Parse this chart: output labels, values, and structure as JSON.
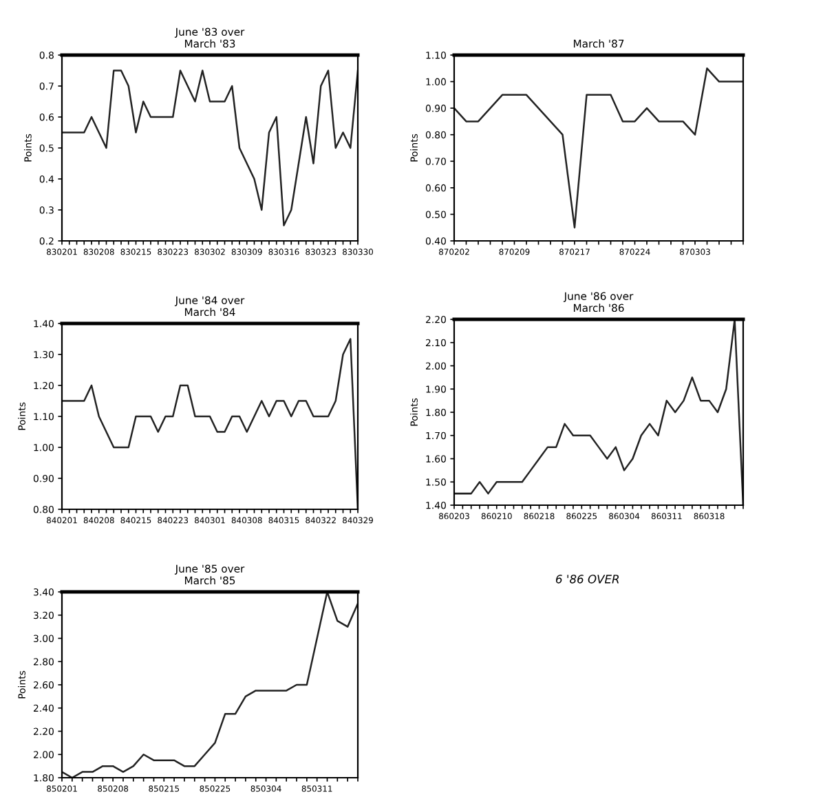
{
  "chart_data": [
    {
      "type": "line",
      "title": "June '83 over\nMarch '83",
      "ylabel": "Points",
      "grid": false,
      "marker": "none",
      "line_style": "solid",
      "categories": [
        "830201",
        null,
        null,
        null,
        null,
        "830208",
        null,
        null,
        null,
        null,
        "830215",
        null,
        null,
        null,
        null,
        "830223",
        null,
        null,
        null,
        null,
        "830302",
        null,
        null,
        null,
        null,
        "830309",
        null,
        null,
        null,
        null,
        "830316",
        null,
        null,
        null,
        null,
        "830323",
        null,
        null,
        null,
        null,
        "830330"
      ],
      "series": [
        {
          "color": "#222222",
          "values": [
            0.55,
            0.55,
            0.55,
            0.55,
            0.6,
            0.55,
            0.5,
            0.75,
            0.75,
            0.7,
            0.55,
            0.65,
            0.6,
            0.6,
            0.6,
            0.6,
            0.75,
            0.7,
            0.65,
            0.75,
            0.65,
            0.65,
            0.65,
            0.7,
            0.5,
            0.45,
            0.4,
            0.3,
            0.55,
            0.6,
            0.25,
            0.3,
            0.45,
            0.6,
            0.45,
            0.7,
            0.75,
            0.5,
            0.55,
            0.5,
            0.75
          ]
        }
      ],
      "ylim": [
        0.2,
        0.8
      ],
      "yticks": [
        0.2,
        0.3,
        0.4,
        0.5,
        0.6,
        0.7,
        0.8
      ]
    },
    {
      "type": "line",
      "title": "March '87",
      "ylabel": "Points",
      "grid": false,
      "marker": "none",
      "line_style": "solid",
      "categories": [
        "870202",
        null,
        null,
        null,
        null,
        "870209",
        null,
        null,
        null,
        null,
        "870217",
        null,
        null,
        null,
        null,
        "870224",
        null,
        null,
        null,
        null,
        "870303",
        null,
        null,
        null,
        null
      ],
      "series": [
        {
          "color": "#222222",
          "values": [
            0.9,
            0.85,
            0.85,
            0.9,
            0.95,
            0.95,
            0.95,
            0.9,
            0.85,
            0.8,
            0.45,
            0.95,
            0.95,
            0.95,
            0.85,
            0.85,
            0.9,
            0.85,
            0.85,
            0.85,
            0.8,
            1.05,
            1.0,
            1.0,
            1.0
          ]
        }
      ],
      "ylim": [
        0.4,
        1.1
      ],
      "yticks": [
        {
          "value": 0.4,
          "label": "0.40"
        },
        {
          "value": 0.5,
          "label": "0.50"
        },
        {
          "value": 0.6,
          "label": "0.60"
        },
        {
          "value": 0.7,
          "label": "0.70"
        },
        {
          "value": 0.8,
          "label": "0.80"
        },
        {
          "value": 0.9,
          "label": "0.90"
        },
        {
          "value": 1.0,
          "label": "1.00"
        },
        {
          "value": 1.1,
          "label": "1.10"
        }
      ]
    },
    {
      "type": "line",
      "title": "June '84 over\nMarch '84",
      "ylabel": "Points",
      "grid": false,
      "marker": "none",
      "line_style": "solid",
      "categories": [
        "840201",
        null,
        null,
        null,
        null,
        "840208",
        null,
        null,
        null,
        null,
        "840215",
        null,
        null,
        null,
        null,
        "840223",
        null,
        null,
        null,
        null,
        "840301",
        null,
        null,
        null,
        null,
        "840308",
        null,
        null,
        null,
        null,
        "840315",
        null,
        null,
        null,
        null,
        "840322",
        null,
        null,
        null,
        null,
        "840329"
      ],
      "series": [
        {
          "color": "#222222",
          "values": [
            1.15,
            1.15,
            1.15,
            1.15,
            1.2,
            1.1,
            1.05,
            1.0,
            1.0,
            1.0,
            1.1,
            1.1,
            1.1,
            1.05,
            1.1,
            1.1,
            1.2,
            1.2,
            1.1,
            1.1,
            1.1,
            1.05,
            1.05,
            1.1,
            1.1,
            1.05,
            1.1,
            1.15,
            1.1,
            1.15,
            1.15,
            1.1,
            1.15,
            1.15,
            1.1,
            1.1,
            1.1,
            1.15,
            1.3,
            1.35,
            0.8
          ]
        }
      ],
      "ylim": [
        0.8,
        1.4
      ],
      "yticks": [
        {
          "value": 0.8,
          "label": "0.80"
        },
        {
          "value": 0.9,
          "label": "0.90"
        },
        {
          "value": 1.0,
          "label": "1.00"
        },
        {
          "value": 1.1,
          "label": "1.10"
        },
        {
          "value": 1.2,
          "label": "1.20"
        },
        {
          "value": 1.3,
          "label": "1.30"
        },
        {
          "value": 1.4,
          "label": "1.40"
        }
      ]
    },
    {
      "type": "line",
      "title": "June '86 over\nMarch '86",
      "ylabel": "Points",
      "grid": false,
      "marker": "none",
      "line_style": "solid",
      "annotations": [
        "6 '86 OVER"
      ],
      "categories": [
        "860203",
        null,
        null,
        null,
        null,
        "860210",
        null,
        null,
        null,
        null,
        "860218",
        null,
        null,
        null,
        null,
        "860225",
        null,
        null,
        null,
        null,
        "860304",
        null,
        null,
        null,
        null,
        "860311",
        null,
        null,
        null,
        null,
        "860318",
        null,
        null,
        null,
        null
      ],
      "series": [
        {
          "color": "#222222",
          "values": [
            1.45,
            1.45,
            1.45,
            1.5,
            1.45,
            1.5,
            1.5,
            1.5,
            1.5,
            1.55,
            1.6,
            1.65,
            1.65,
            1.75,
            1.7,
            1.7,
            1.7,
            1.65,
            1.6,
            1.65,
            1.55,
            1.6,
            1.7,
            1.75,
            1.7,
            1.85,
            1.8,
            1.85,
            1.95,
            1.85,
            1.85,
            1.8,
            1.9,
            2.2,
            1.4
          ]
        }
      ],
      "ylim": [
        1.4,
        2.2
      ],
      "yticks": [
        {
          "value": 1.4,
          "label": "1.40"
        },
        {
          "value": 1.5,
          "label": "1.50"
        },
        {
          "value": 1.6,
          "label": "1.60"
        },
        {
          "value": 1.7,
          "label": "1.70"
        },
        {
          "value": 1.8,
          "label": "1.80"
        },
        {
          "value": 1.9,
          "label": "1.90"
        },
        {
          "value": 2.0,
          "label": "2.00"
        },
        {
          "value": 2.1,
          "label": "2.10"
        },
        {
          "value": 2.2,
          "label": "2.20"
        }
      ]
    },
    {
      "type": "line",
      "title": "June '85 over\nMarch '85",
      "ylabel": "Points",
      "grid": false,
      "marker": "none",
      "line_style": "solid",
      "categories": [
        "850201",
        null,
        null,
        null,
        null,
        "850208",
        null,
        null,
        null,
        null,
        "850215",
        null,
        null,
        null,
        null,
        "850225",
        null,
        null,
        null,
        null,
        "850304",
        null,
        null,
        null,
        null,
        "850311",
        null,
        null,
        null,
        null
      ],
      "series": [
        {
          "color": "#222222",
          "values": [
            1.85,
            1.8,
            1.85,
            1.85,
            1.9,
            1.9,
            1.85,
            1.9,
            2.0,
            1.95,
            1.95,
            1.95,
            1.9,
            1.9,
            2.0,
            2.1,
            2.35,
            2.35,
            2.5,
            2.55,
            2.55,
            2.55,
            2.55,
            2.6,
            2.6,
            3.0,
            3.4,
            3.15,
            3.1,
            3.3
          ]
        }
      ],
      "ylim": [
        1.8,
        3.4
      ],
      "yticks": [
        {
          "value": 1.8,
          "label": "1.80"
        },
        {
          "value": 2.0,
          "label": "2.00"
        },
        {
          "value": 2.2,
          "label": "2.20"
        },
        {
          "value": 2.4,
          "label": "2.40"
        },
        {
          "value": 2.6,
          "label": "2.60"
        },
        {
          "value": 2.8,
          "label": "2.80"
        },
        {
          "value": 3.0,
          "label": "3.00"
        },
        {
          "value": 3.2,
          "label": "3.20"
        },
        {
          "value": 3.4,
          "label": "3.40"
        }
      ]
    }
  ]
}
